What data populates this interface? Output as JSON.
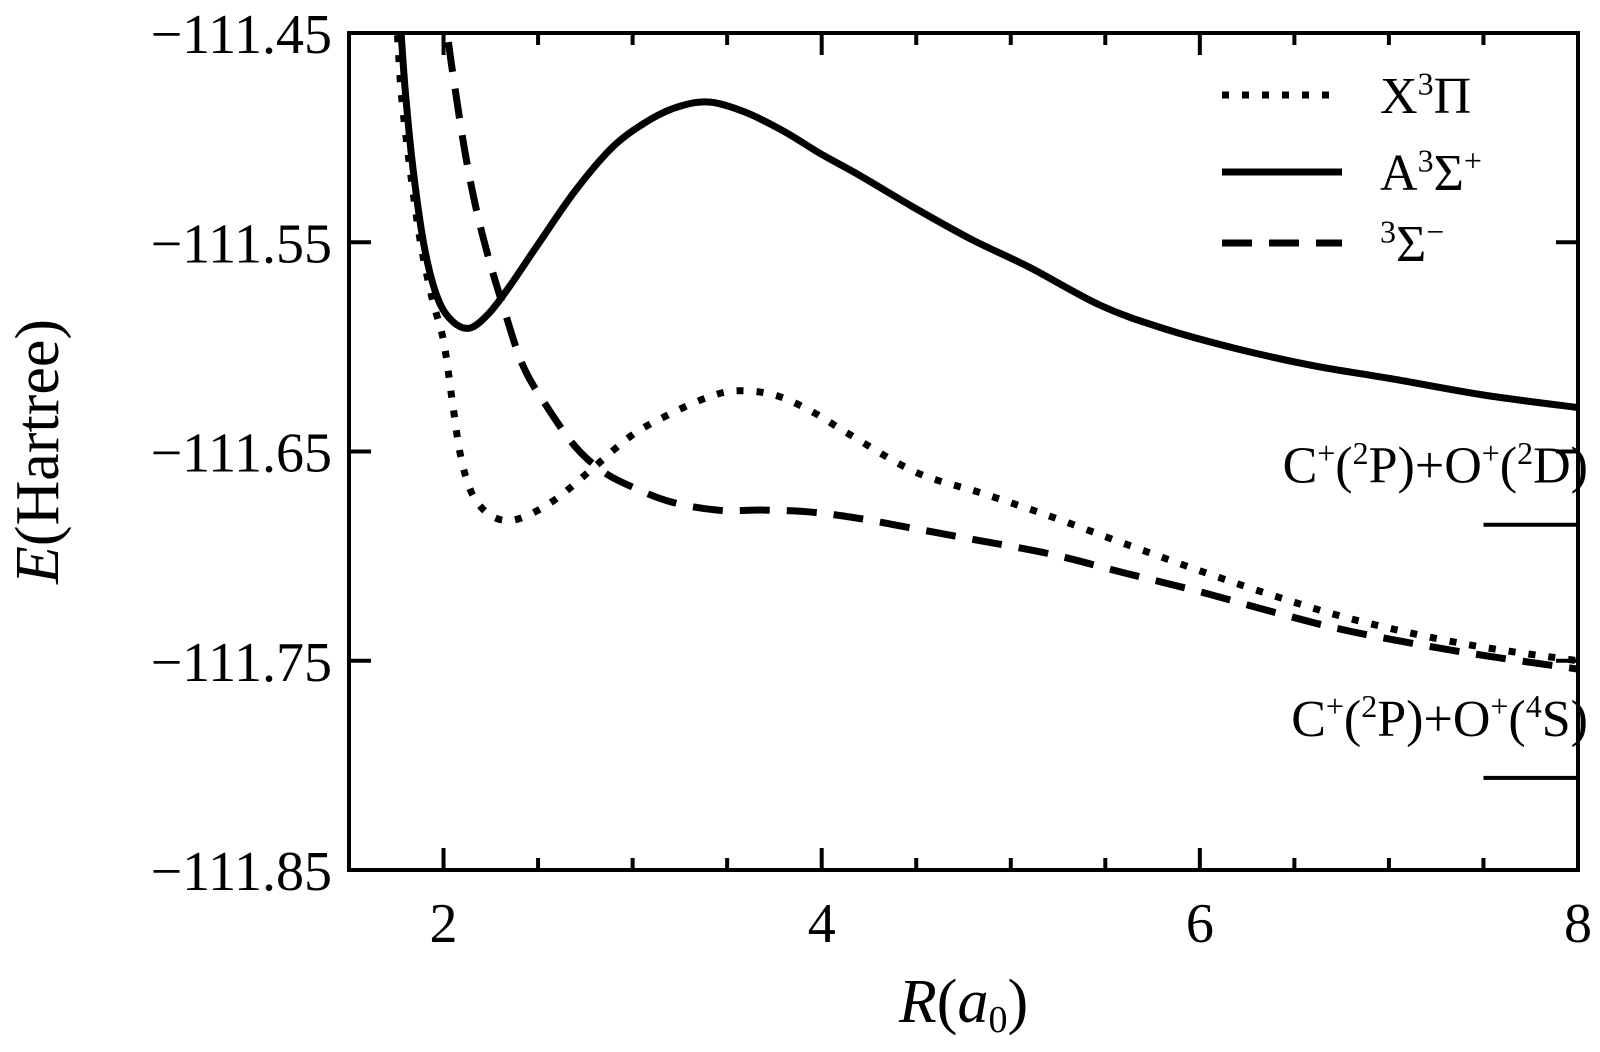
{
  "figure": {
    "background": "#ffffff",
    "line_color": "#000000"
  },
  "chart_data": {
    "type": "line",
    "title": "",
    "xlabel_parts": [
      {
        "t": "R",
        "i": true
      },
      {
        "t": "("
      },
      {
        "t": "a",
        "i": true
      },
      {
        "t": "0",
        "sub": true
      },
      {
        "t": ")"
      }
    ],
    "ylabel_parts": [
      {
        "t": "E",
        "i": true
      },
      {
        "t": "(Hartree)"
      }
    ],
    "xlim": [
      1.5,
      8
    ],
    "ylim": [
      -111.85,
      -111.45
    ],
    "grid": false,
    "legend_position": "upper right",
    "x_major_ticks": [
      {
        "value": 2,
        "label": "2"
      },
      {
        "value": 4,
        "label": "4"
      },
      {
        "value": 6,
        "label": "6"
      },
      {
        "value": 8,
        "label": "8"
      }
    ],
    "x_minor_ticks": [
      2.5,
      3,
      3.5,
      4.5,
      5,
      5.5,
      6.5,
      7,
      7.5
    ],
    "y_major_ticks": [
      {
        "value": -111.45,
        "label": "−111.45"
      },
      {
        "value": -111.55,
        "label": "−111.55"
      },
      {
        "value": -111.65,
        "label": "−111.65"
      },
      {
        "value": -111.75,
        "label": "−111.75"
      },
      {
        "value": -111.85,
        "label": "−111.85"
      }
    ],
    "series": [
      {
        "name": "X3Pi",
        "label_parts": [
          {
            "t": "X"
          },
          {
            "t": "3",
            "sup": true
          },
          {
            "t": "Π"
          }
        ],
        "style": "dotted",
        "points": [
          [
            1.745,
            -111.432
          ],
          [
            1.757,
            -111.452
          ],
          [
            1.78,
            -111.482
          ],
          [
            1.83,
            -111.52
          ],
          [
            1.88,
            -111.551
          ],
          [
            1.94,
            -111.577
          ],
          [
            2.0,
            -111.597
          ],
          [
            2.045,
            -111.625
          ],
          [
            2.09,
            -111.652
          ],
          [
            2.15,
            -111.67
          ],
          [
            2.24,
            -111.68
          ],
          [
            2.35,
            -111.683
          ],
          [
            2.48,
            -111.679
          ],
          [
            2.62,
            -111.671
          ],
          [
            2.79,
            -111.658
          ],
          [
            3.0,
            -111.642
          ],
          [
            3.2,
            -111.632
          ],
          [
            3.4,
            -111.624
          ],
          [
            3.55,
            -111.621
          ],
          [
            3.75,
            -111.623
          ],
          [
            3.95,
            -111.631
          ],
          [
            4.15,
            -111.642
          ],
          [
            4.5,
            -111.66
          ],
          [
            4.85,
            -111.67
          ],
          [
            5.21,
            -111.681
          ],
          [
            5.6,
            -111.694
          ],
          [
            6.0,
            -111.707
          ],
          [
            6.36,
            -111.718
          ],
          [
            6.8,
            -111.73
          ],
          [
            7.4,
            -111.742
          ],
          [
            8.0,
            -111.75
          ]
        ]
      },
      {
        "name": "A3Sigma+",
        "label_parts": [
          {
            "t": "A"
          },
          {
            "t": "3",
            "sup": true
          },
          {
            "t": "Σ"
          },
          {
            "t": "+",
            "sup": true
          }
        ],
        "style": "solid",
        "points": [
          [
            1.765,
            -111.432
          ],
          [
            1.777,
            -111.452
          ],
          [
            1.8,
            -111.48
          ],
          [
            1.84,
            -111.516
          ],
          [
            1.9,
            -111.553
          ],
          [
            1.97,
            -111.577
          ],
          [
            2.05,
            -111.588
          ],
          [
            2.14,
            -111.591
          ],
          [
            2.24,
            -111.584
          ],
          [
            2.35,
            -111.571
          ],
          [
            2.5,
            -111.551
          ],
          [
            2.7,
            -111.525
          ],
          [
            2.9,
            -111.504
          ],
          [
            3.1,
            -111.491
          ],
          [
            3.25,
            -111.485
          ],
          [
            3.41,
            -111.483
          ],
          [
            3.6,
            -111.488
          ],
          [
            3.8,
            -111.497
          ],
          [
            4.0,
            -111.508
          ],
          [
            4.2,
            -111.518
          ],
          [
            4.5,
            -111.534
          ],
          [
            4.8,
            -111.549
          ],
          [
            5.1,
            -111.562
          ],
          [
            5.47,
            -111.58
          ],
          [
            5.8,
            -111.591
          ],
          [
            6.2,
            -111.601
          ],
          [
            6.6,
            -111.609
          ],
          [
            7.0,
            -111.615
          ],
          [
            7.5,
            -111.623
          ],
          [
            8.0,
            -111.629
          ]
        ]
      },
      {
        "name": "3Sigma-",
        "label_parts": [
          {
            "t": "3",
            "sup": true
          },
          {
            "t": "Σ"
          },
          {
            "t": "−",
            "sup": true
          }
        ],
        "style": "dashed",
        "points": [
          [
            2.005,
            -111.432
          ],
          [
            2.023,
            -111.452
          ],
          [
            2.06,
            -111.476
          ],
          [
            2.11,
            -111.505
          ],
          [
            2.17,
            -111.533
          ],
          [
            2.24,
            -111.558
          ],
          [
            2.32,
            -111.582
          ],
          [
            2.42,
            -111.609
          ],
          [
            2.55,
            -111.629
          ],
          [
            2.7,
            -111.648
          ],
          [
            2.85,
            -111.66
          ],
          [
            3.0,
            -111.667
          ],
          [
            3.2,
            -111.674
          ],
          [
            3.45,
            -111.678
          ],
          [
            3.7,
            -111.678
          ],
          [
            3.95,
            -111.679
          ],
          [
            4.2,
            -111.682
          ],
          [
            4.5,
            -111.687
          ],
          [
            4.8,
            -111.692
          ],
          [
            5.21,
            -111.699
          ],
          [
            5.6,
            -111.708
          ],
          [
            6.0,
            -111.717
          ],
          [
            6.4,
            -111.727
          ],
          [
            6.8,
            -111.736
          ],
          [
            7.4,
            -111.746
          ],
          [
            8.0,
            -111.754
          ]
        ]
      }
    ],
    "asymptotes": [
      {
        "name": "C+(2P)+O+(2D)",
        "label_parts": [
          {
            "t": "C"
          },
          {
            "t": "+",
            "sup": true
          },
          {
            "t": "("
          },
          {
            "t": "2",
            "sup": true
          },
          {
            "t": "P)+O"
          },
          {
            "t": "+",
            "sup": true
          },
          {
            "t": "("
          },
          {
            "t": "2",
            "sup": true
          },
          {
            "t": "D)"
          }
        ],
        "energy": -111.685,
        "x_range": [
          7.5,
          8
        ]
      },
      {
        "name": "C+(2P)+O+(4S)",
        "label_parts": [
          {
            "t": "C"
          },
          {
            "t": "+",
            "sup": true
          },
          {
            "t": "("
          },
          {
            "t": "2",
            "sup": true
          },
          {
            "t": "P)+O"
          },
          {
            "t": "+",
            "sup": true
          },
          {
            "t": "("
          },
          {
            "t": "4",
            "sup": true
          },
          {
            "t": "S)"
          }
        ],
        "energy": -111.806,
        "x_range": [
          7.5,
          8
        ]
      }
    ]
  }
}
